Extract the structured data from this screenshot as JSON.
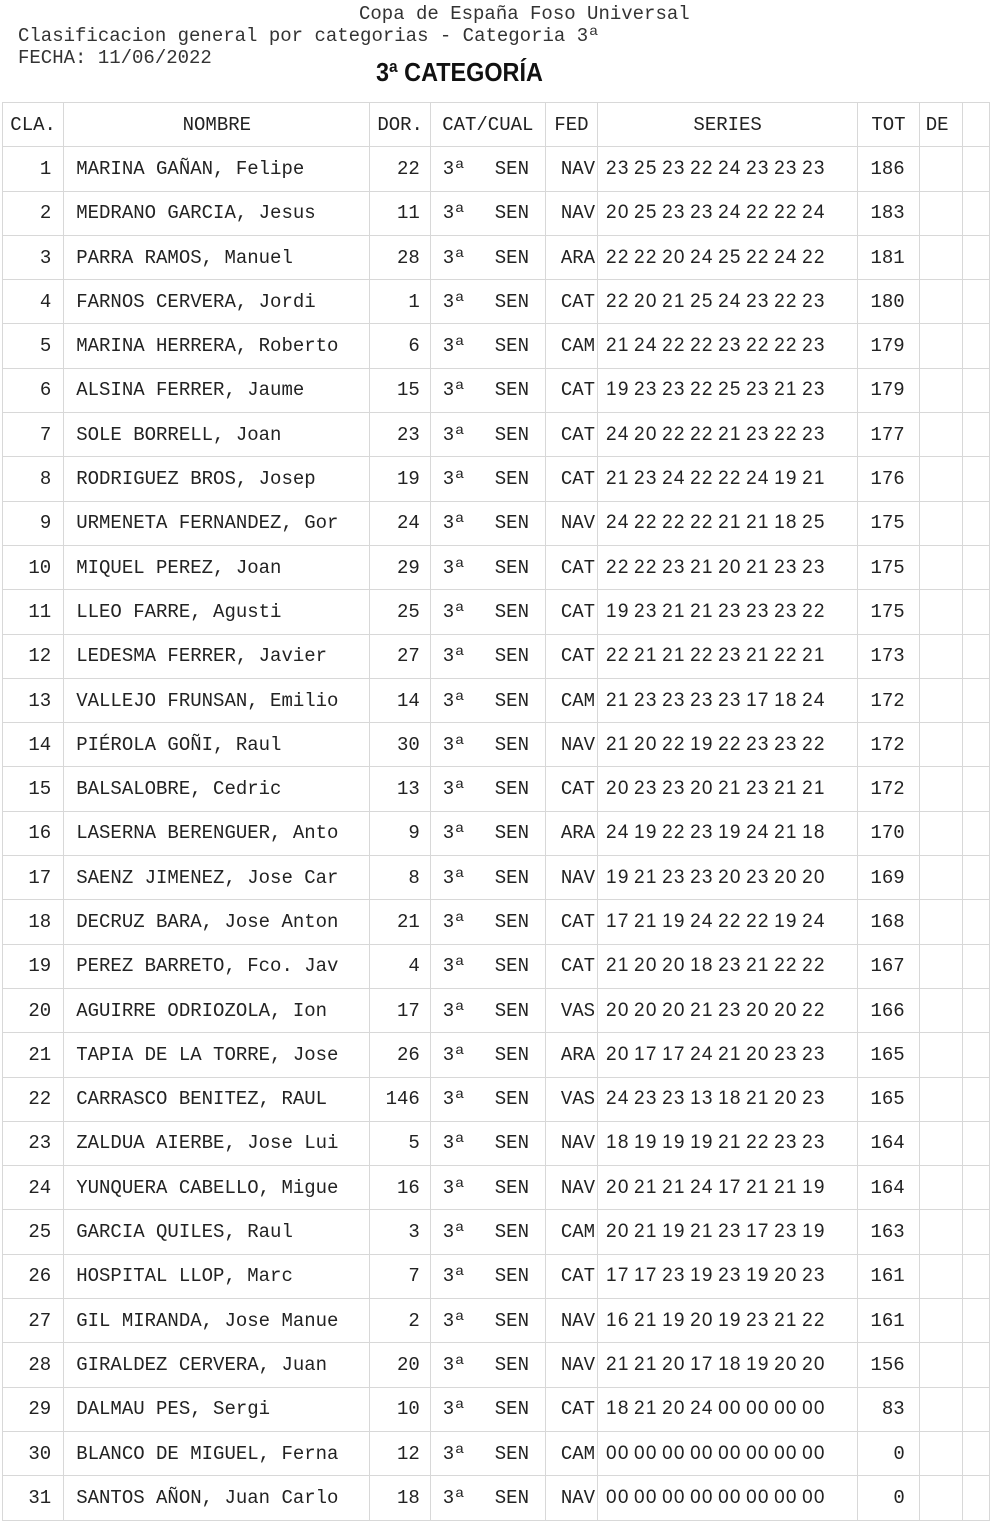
{
  "header": {
    "line1": "Copa de España Foso Universal",
    "line2": "Clasificacion general por categorias - Categoria 3ª",
    "line3": "FECHA: 11/06/2022",
    "category_title": "3ª CATEGORÍA"
  },
  "table": {
    "columns": [
      "CLA.",
      "NOMBRE",
      "DOR.",
      "CAT/CUAL",
      "FED",
      "SERIES",
      "TOT",
      "DE",
      ""
    ],
    "rows": [
      [
        "1",
        "MARINA GAÑAN, Felipe",
        "22",
        "3ª",
        "SEN",
        "NAV",
        "23 25 23 22 24 23 23 23",
        "186"
      ],
      [
        "2",
        "MEDRANO GARCIA, Jesus",
        "11",
        "3ª",
        "SEN",
        "NAV",
        "20 25 23 23 24 22 22 24",
        "183"
      ],
      [
        "3",
        "PARRA RAMOS, Manuel",
        "28",
        "3ª",
        "SEN",
        "ARA",
        "22 22 20 24 25 22 24 22",
        "181"
      ],
      [
        "4",
        "FARNOS CERVERA, Jordi",
        "1",
        "3ª",
        "SEN",
        "CAT",
        "22 20 21 25 24 23 22 23",
        "180"
      ],
      [
        "5",
        "MARINA HERRERA, Roberto",
        "6",
        "3ª",
        "SEN",
        "CAM",
        "21 24 22 22 23 22 22 23",
        "179"
      ],
      [
        "6",
        "ALSINA FERRER, Jaume",
        "15",
        "3ª",
        "SEN",
        "CAT",
        "19 23 23 22 25 23 21 23",
        "179"
      ],
      [
        "7",
        "SOLE BORRELL, Joan",
        "23",
        "3ª",
        "SEN",
        "CAT",
        "24 20 22 22 21 23 22 23",
        "177"
      ],
      [
        "8",
        "RODRIGUEZ BROS, Josep",
        "19",
        "3ª",
        "SEN",
        "CAT",
        "21 23 24 22 22 24 19 21",
        "176"
      ],
      [
        "9",
        "URMENETA FERNANDEZ, Gor",
        "24",
        "3ª",
        "SEN",
        "NAV",
        "24 22 22 22 21 21 18 25",
        "175"
      ],
      [
        "10",
        "MIQUEL PEREZ, Joan",
        "29",
        "3ª",
        "SEN",
        "CAT",
        "22 22 23 21 20 21 23 23",
        "175"
      ],
      [
        "11",
        "LLEO FARRE, Agusti",
        "25",
        "3ª",
        "SEN",
        "CAT",
        "19 23 21 21 23 23 23 22",
        "175"
      ],
      [
        "12",
        "LEDESMA FERRER, Javier",
        "27",
        "3ª",
        "SEN",
        "CAT",
        "22 21 21 22 23 21 22 21",
        "173"
      ],
      [
        "13",
        "VALLEJO FRUNSAN, Emilio",
        "14",
        "3ª",
        "SEN",
        "CAM",
        "21 23 23 23 23 17 18 24",
        "172"
      ],
      [
        "14",
        "PIÉROLA GOÑI, Raul",
        "30",
        "3ª",
        "SEN",
        "NAV",
        "21 20 22 19 22 23 23 22",
        "172"
      ],
      [
        "15",
        "BALSALOBRE, Cedric",
        "13",
        "3ª",
        "SEN",
        "CAT",
        "20 23 23 20 21 23 21 21",
        "172"
      ],
      [
        "16",
        "LASERNA BERENGUER, Anto",
        "9",
        "3ª",
        "SEN",
        "ARA",
        "24 19 22 23 19 24 21 18",
        "170"
      ],
      [
        "17",
        "SAENZ JIMENEZ, Jose Car",
        "8",
        "3ª",
        "SEN",
        "NAV",
        "19 21 23 23 20 23 20 20",
        "169"
      ],
      [
        "18",
        "DECRUZ BARA, Jose Anton",
        "21",
        "3ª",
        "SEN",
        "CAT",
        "17 21 19 24 22 22 19 24",
        "168"
      ],
      [
        "19",
        "PEREZ BARRETO, Fco. Jav",
        "4",
        "3ª",
        "SEN",
        "CAT",
        "21 20 20 18 23 21 22 22",
        "167"
      ],
      [
        "20",
        "AGUIRRE ODRIOZOLA, Ion",
        "17",
        "3ª",
        "SEN",
        "VAS",
        "20 20 20 21 23 20 20 22",
        "166"
      ],
      [
        "21",
        "TAPIA DE LA TORRE, Jose",
        "26",
        "3ª",
        "SEN",
        "ARA",
        "20 17 17 24 21 20 23 23",
        "165"
      ],
      [
        "22",
        "CARRASCO BENITEZ, RAUL",
        "146",
        "3ª",
        "SEN",
        "VAS",
        "24 23 23 13 18 21 20 23",
        "165"
      ],
      [
        "23",
        "ZALDUA AIERBE, Jose Lui",
        "5",
        "3ª",
        "SEN",
        "NAV",
        "18 19 19 19 21 22 23 23",
        "164"
      ],
      [
        "24",
        "YUNQUERA CABELLO, Migue",
        "16",
        "3ª",
        "SEN",
        "NAV",
        "20 21 21 24 17 21 21 19",
        "164"
      ],
      [
        "25",
        "GARCIA QUILES, Raul",
        "3",
        "3ª",
        "SEN",
        "CAM",
        "20 21 19 21 23 17 23 19",
        "163"
      ],
      [
        "26",
        "HOSPITAL LLOP, Marc",
        "7",
        "3ª",
        "SEN",
        "CAT",
        "17 17 23 19 23 19 20 23",
        "161"
      ],
      [
        "27",
        "GIL MIRANDA, Jose Manue",
        "2",
        "3ª",
        "SEN",
        "NAV",
        "16 21 19 20 19 23 21 22",
        "161"
      ],
      [
        "28",
        "GIRALDEZ CERVERA, Juan",
        "20",
        "3ª",
        "SEN",
        "NAV",
        "21 21 20 17 18 19 20 20",
        "156"
      ],
      [
        "29",
        "DALMAU PES, Sergi",
        "10",
        "3ª",
        "SEN",
        "CAT",
        "18 21 20 24 00 00 00 00",
        "83"
      ],
      [
        "30",
        "BLANCO DE MIGUEL, Ferna",
        "12",
        "3ª",
        "SEN",
        "CAM",
        "00 00 00 00 00 00 00 00",
        "0"
      ],
      [
        "31",
        "SANTOS AÑON, Juan Carlo",
        "18",
        "3ª",
        "SEN",
        "NAV",
        "00 00 00 00 00 00 00 00",
        "0"
      ]
    ]
  }
}
